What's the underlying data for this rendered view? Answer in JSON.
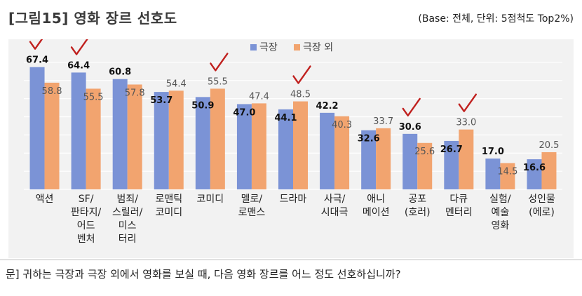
{
  "figure": {
    "title": "[그림15]  영화 장르 선호도",
    "note": "(Base: 전체,  단위:  5점척도  Top2%)"
  },
  "footer": {
    "question": "문]  귀하는 극장과 극장 외에서 영화를 보실 때, 다음 영화 장르를 어느 정도 선호하십니까?"
  },
  "colors": {
    "theater": "#7b93d6",
    "outside": "#f2a46f",
    "check": "#c0201e",
    "grid": "#ffffff"
  },
  "chart_data": {
    "type": "bar",
    "title": "",
    "xlabel": "",
    "ylabel": "",
    "ylim": [
      0,
      75
    ],
    "legend_position": "top-center",
    "categories": [
      [
        "액션"
      ],
      [
        "SF/",
        "판타지/",
        "어드",
        "벤처"
      ],
      [
        "범죄/",
        "스릴러/",
        "미스",
        "터리"
      ],
      [
        "로맨틱",
        "코미디"
      ],
      [
        "코미디"
      ],
      [
        "멜로/",
        "로맨스"
      ],
      [
        "드라마"
      ],
      [
        "사극/",
        "시대극"
      ],
      [
        "애니",
        "메이션"
      ],
      [
        "공포",
        "(호러)"
      ],
      [
        "다큐",
        "멘터리"
      ],
      [
        "실험/",
        "예술",
        "영화"
      ],
      [
        "성인물",
        "(에로)"
      ]
    ],
    "series": [
      {
        "name": "극장",
        "values": [
          67.4,
          64.4,
          60.8,
          53.7,
          50.9,
          47.0,
          44.1,
          42.2,
          32.6,
          30.6,
          26.7,
          17.0,
          16.6
        ]
      },
      {
        "name": "극장 외",
        "values": [
          58.8,
          55.5,
          57.8,
          54.4,
          55.5,
          47.4,
          48.5,
          40.3,
          33.7,
          25.6,
          33.0,
          14.5,
          20.5
        ]
      }
    ],
    "check_marks": [
      {
        "category_index": 0,
        "series": "극장"
      },
      {
        "category_index": 1,
        "series": "극장"
      },
      {
        "category_index": 4,
        "series": "극장 외"
      },
      {
        "category_index": 6,
        "series": "극장 외"
      },
      {
        "category_index": 9,
        "series": "극장"
      },
      {
        "category_index": 10,
        "series": "극장 외"
      }
    ]
  }
}
